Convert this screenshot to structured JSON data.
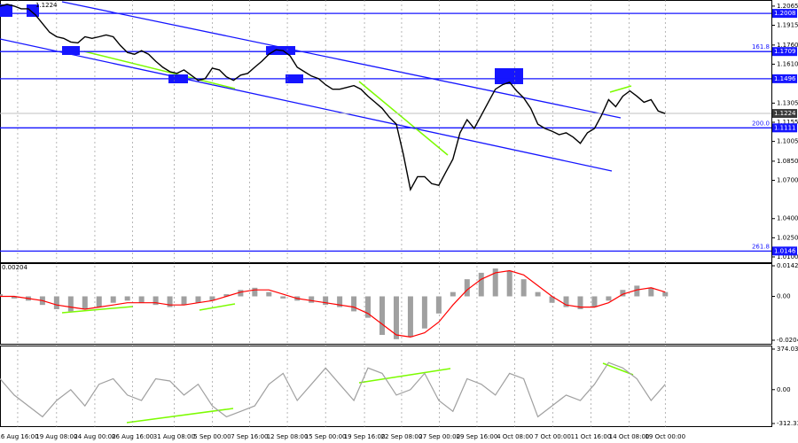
{
  "header_text": "1.1224",
  "chart_data": [
    {
      "type": "line",
      "name": "price",
      "xlim": [
        0,
        109
      ],
      "xticks": [
        {
          "value": 2.5,
          "label": "16 Aug 16:00"
        },
        {
          "value": 8,
          "label": "19 Aug 08:00"
        },
        {
          "value": 13.4,
          "label": "24 Aug 00:00"
        },
        {
          "value": 18.75,
          "label": "26 Aug 16:00"
        },
        {
          "value": 24.6,
          "label": "31 Aug 08:00"
        },
        {
          "value": 30,
          "label": "5 Sep 00:00"
        },
        {
          "value": 35.25,
          "label": "7 Sep 16:00"
        },
        {
          "value": 40.6,
          "label": "12 Sep 08:00"
        },
        {
          "value": 46,
          "label": "15 Sep 00:00"
        },
        {
          "value": 51.5,
          "label": "19 Sep 16:00"
        },
        {
          "value": 56.75,
          "label": "22 Sep 08:00"
        },
        {
          "value": 62.1,
          "label": "27 Sep 00:00"
        },
        {
          "value": 67.4,
          "label": "29 Sep 16:00"
        },
        {
          "value": 72.75,
          "label": "4 Oct 08:00"
        },
        {
          "value": 78.1,
          "label": "7 Oct 00:00"
        },
        {
          "value": 83.5,
          "label": "11 Oct 16:00"
        },
        {
          "value": 88.9,
          "label": "14 Oct 08:00"
        },
        {
          "value": 94,
          "label": "19 Oct 00:00"
        }
      ],
      "ylim": [
        1.0072,
        1.2099
      ],
      "yticks": [
        1.2065,
        1.1915,
        {
          "value": 1.176,
          "label": "1.1760"
        },
        {
          "value": 1.161,
          "label": "1.1610"
        },
        1.1305,
        1.1155,
        1.1005,
        {
          "value": 1.085,
          "label": "1.0850"
        },
        {
          "value": 1.07,
          "label": "1.0700"
        },
        {
          "value": 1.04,
          "label": "1.0400"
        },
        {
          "value": 1.025,
          "label": "1.0250"
        },
        {
          "value": 1.01,
          "label": "1.0100"
        }
      ],
      "levels": [
        {
          "value": 1.2008
        },
        {
          "value": 1.1709,
          "fib_label": "161.8"
        },
        {
          "value": 1.1496
        },
        {
          "value": 1.1111,
          "fib_label": "200.0"
        },
        {
          "value": 1.0146,
          "fib_label": "261.8"
        }
      ],
      "last": 1.1224,
      "series": [
        {
          "name": "EURUSD",
          "color": "#000000",
          "values": [
            1.2065,
            1.2079,
            1.2065,
            1.2044,
            1.2044,
            1.1997,
            1.1928,
            1.186,
            1.1825,
            1.1812,
            1.1784,
            1.1777,
            1.1825,
            1.1812,
            1.1825,
            1.1839,
            1.1825,
            1.1757,
            1.1702,
            1.1688,
            1.1716,
            1.1688,
            1.1633,
            1.1586,
            1.1551,
            1.1538,
            1.1565,
            1.1524,
            1.1483,
            1.1497,
            1.1579,
            1.1565,
            1.151,
            1.1483,
            1.1524,
            1.1538,
            1.1586,
            1.1633,
            1.1688,
            1.1723,
            1.1716,
            1.1675,
            1.1586,
            1.1551,
            1.1517,
            1.1497,
            1.1449,
            1.1414,
            1.1414,
            1.1428,
            1.1442,
            1.1414,
            1.1359,
            1.1312,
            1.1264,
            1.1195,
            1.114,
            1.09,
            1.0627,
            1.0729,
            1.0729,
            1.0674,
            1.0661,
            1.0764,
            1.0866,
            1.1072,
            1.1175,
            1.1106,
            1.1209,
            1.1312,
            1.1414,
            1.1449,
            1.1469,
            1.1401,
            1.1346,
            1.1264,
            1.114,
            1.1106,
            1.1085,
            1.1058,
            1.1072,
            1.1038,
            1.099,
            1.1072,
            1.1106,
            1.1209,
            1.1332,
            1.1277,
            1.1359,
            1.1401,
            1.1359,
            1.1312,
            1.1332,
            1.1243,
            1.1223
          ]
        }
      ]
    },
    {
      "type": "macd",
      "name": "macd",
      "header": "0.00204",
      "ylim": [
        -0.02049,
        0.01427
      ],
      "yticks": [
        0.01427,
        {
          "value": 0,
          "label": "0.00"
        },
        -0.02049
      ],
      "series": [
        {
          "name": "histogram",
          "color": "#a0a0a0",
          "values": [
            0.001,
            -0.001,
            -0.002,
            -0.004,
            -0.006,
            -0.007,
            -0.006,
            -0.005,
            -0.003,
            -0.002,
            -0.003,
            -0.004,
            -0.005,
            -0.004,
            -0.003,
            -0.002,
            0.001,
            0.003,
            0.004,
            0.002,
            -0.001,
            -0.002,
            -0.003,
            -0.004,
            -0.005,
            -0.007,
            -0.01,
            -0.018,
            -0.02,
            -0.019,
            -0.015,
            -0.008,
            0.002,
            0.008,
            0.011,
            0.013,
            0.012,
            0.008,
            0.002,
            -0.003,
            -0.005,
            -0.006,
            -0.005,
            -0.002,
            0.003,
            0.005,
            0.004,
            0.002
          ]
        },
        {
          "name": "signal",
          "color": "#ff0000",
          "values": [
            0,
            0,
            -0.001,
            -0.002,
            -0.004,
            -0.005,
            -0.006,
            -0.005,
            -0.004,
            -0.003,
            -0.003,
            -0.003,
            -0.004,
            -0.004,
            -0.003,
            -0.002,
            0,
            0.002,
            0.003,
            0.003,
            0.001,
            -0.001,
            -0.002,
            -0.003,
            -0.004,
            -0.005,
            -0.008,
            -0.013,
            -0.018,
            -0.019,
            -0.017,
            -0.012,
            -0.004,
            0.003,
            0.008,
            0.011,
            0.012,
            0.01,
            0.005,
            0,
            -0.004,
            -0.005,
            -0.005,
            -0.003,
            0.001,
            0.003,
            0.004,
            0.002
          ]
        }
      ]
    },
    {
      "type": "cci",
      "name": "cci",
      "ylim": [
        -312.336,
        374.035
      ],
      "yticks": [
        374.035,
        {
          "value": 0,
          "label": "0.00"
        },
        -312.336
      ],
      "series": [
        {
          "name": "cci",
          "color": "#a0a0a0",
          "values": [
            100,
            -50,
            -150,
            -250,
            -100,
            0,
            -150,
            50,
            100,
            -50,
            -100,
            100,
            80,
            -50,
            50,
            -150,
            -250,
            -200,
            -150,
            50,
            150,
            -100,
            50,
            200,
            50,
            -100,
            200,
            150,
            -50,
            0,
            150,
            -100,
            -200,
            100,
            50,
            -50,
            150,
            100,
            -250,
            -150,
            -50,
            -100,
            50,
            250,
            200,
            100,
            -100,
            50
          ]
        }
      ]
    }
  ]
}
